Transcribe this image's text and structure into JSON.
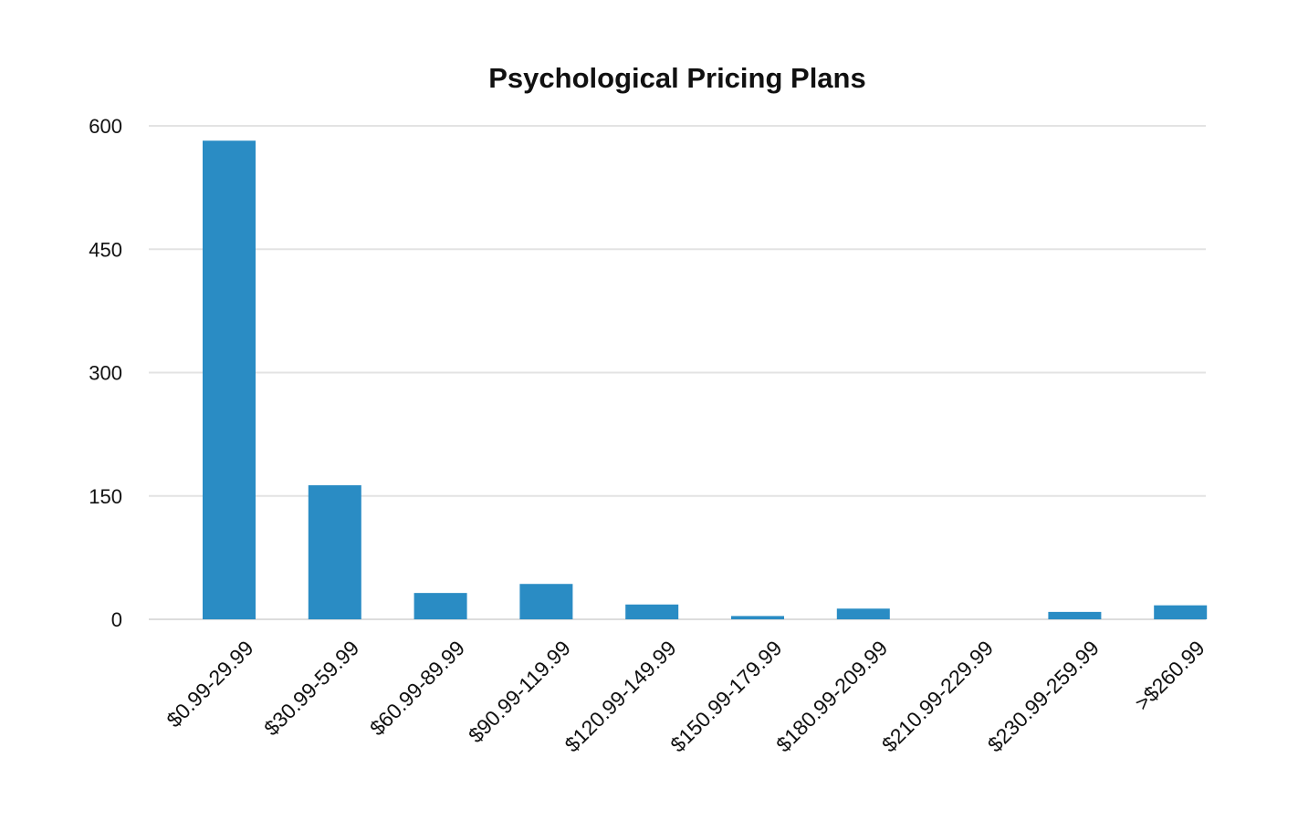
{
  "chart_data": {
    "type": "bar",
    "title": "Psychological Pricing Plans",
    "xlabel": "",
    "ylabel": "",
    "categories": [
      "$0.99-29.99",
      "$30.99-59.99",
      "$60.99-89.99",
      "$90.99-119.99",
      "$120.99-149.99",
      "$150.99-179.99",
      "$180.99-209.99",
      "$210.99-229.99",
      "$230.99-259.99",
      ">$260.99"
    ],
    "values": [
      582,
      163,
      32,
      43,
      18,
      4,
      13,
      0,
      9,
      17
    ],
    "ylim": [
      0,
      600
    ],
    "yticks": [
      0,
      150,
      300,
      450,
      600
    ],
    "grid": true,
    "legend": "none",
    "colors": {
      "bar": "#2a8cc4",
      "grid": "#e3e3e3",
      "text": "#111111"
    }
  }
}
